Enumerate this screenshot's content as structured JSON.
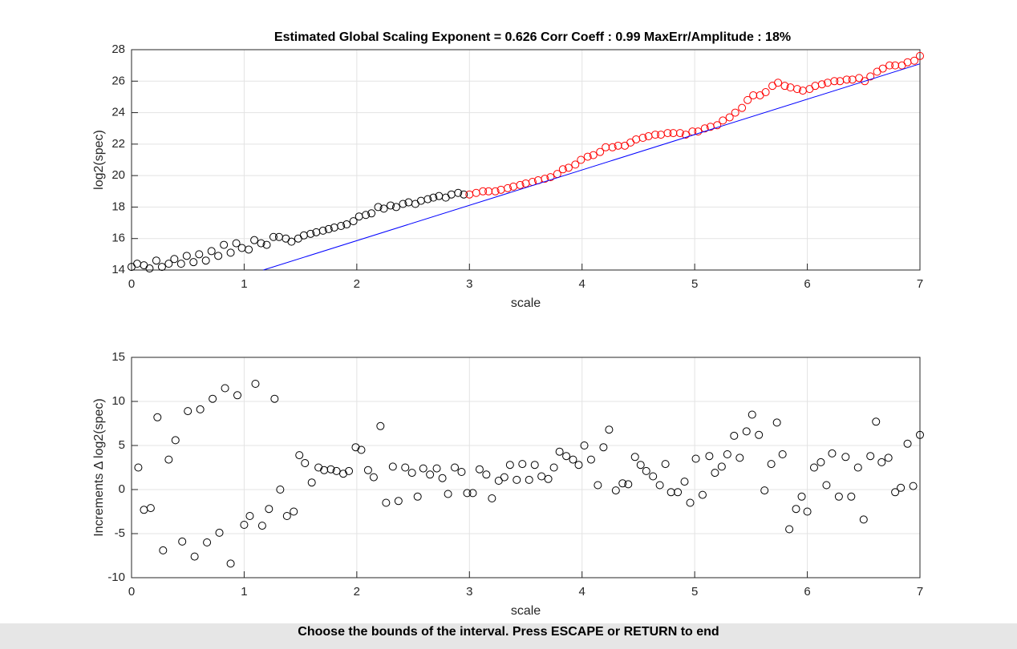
{
  "chart_data": [
    {
      "type": "scatter",
      "title": "Estimated Global Scaling Exponent = 0.626    Corr Coeff : 0.99    MaxErr/Amplitude : 18%",
      "x_label": "scale",
      "y_label": "log2(spec)",
      "xlim": [
        0,
        7
      ],
      "ylim": [
        14,
        28
      ],
      "xticks": [
        0,
        1,
        2,
        3,
        4,
        5,
        6,
        7
      ],
      "yticks": [
        14,
        16,
        18,
        20,
        22,
        24,
        26,
        28
      ],
      "grid": true,
      "series": [
        {
          "color": "#000000",
          "marker": "circle",
          "x": [
            0,
            0.05,
            0.11,
            0.16,
            0.22,
            0.27,
            0.33,
            0.38,
            0.44,
            0.49,
            0.55,
            0.6,
            0.66,
            0.71,
            0.77,
            0.82,
            0.88,
            0.93,
            0.98,
            1.04,
            1.09,
            1.15,
            1.2,
            1.26,
            1.31,
            1.37,
            1.42,
            1.48,
            1.53,
            1.59,
            1.64,
            1.7,
            1.75,
            1.8,
            1.86,
            1.91,
            1.97,
            2.02,
            2.08,
            2.13,
            2.19,
            2.24,
            2.3,
            2.35,
            2.41,
            2.46,
            2.52,
            2.57,
            2.63,
            2.68,
            2.73,
            2.79,
            2.84,
            2.9,
            2.95
          ],
          "values": [
            14.2,
            14.4,
            14.3,
            14.1,
            14.6,
            14.2,
            14.4,
            14.7,
            14.4,
            14.9,
            14.5,
            15.0,
            14.6,
            15.2,
            14.9,
            15.6,
            15.1,
            15.7,
            15.4,
            15.3,
            15.9,
            15.7,
            15.6,
            16.1,
            16.1,
            16.0,
            15.8,
            16.0,
            16.2,
            16.3,
            16.4,
            16.5,
            16.6,
            16.7,
            16.8,
            16.9,
            17.1,
            17.4,
            17.5,
            17.6,
            18.0,
            17.9,
            18.1,
            18.0,
            18.2,
            18.3,
            18.2,
            18.4,
            18.5,
            18.6,
            18.7,
            18.6,
            18.8,
            18.9,
            18.8
          ]
        },
        {
          "color": "#ff0000",
          "marker": "circle",
          "x": [
            3.0,
            3.06,
            3.12,
            3.17,
            3.23,
            3.28,
            3.34,
            3.39,
            3.45,
            3.5,
            3.56,
            3.61,
            3.67,
            3.72,
            3.78,
            3.83,
            3.88,
            3.94,
            3.99,
            4.05,
            4.1,
            4.16,
            4.21,
            4.27,
            4.32,
            4.38,
            4.43,
            4.48,
            4.54,
            4.59,
            4.65,
            4.7,
            4.76,
            4.81,
            4.87,
            4.92,
            4.98,
            5.03,
            5.09,
            5.14,
            5.2,
            5.25,
            5.31,
            5.36,
            5.42,
            5.47,
            5.52,
            5.58,
            5.63,
            5.69,
            5.74,
            5.8,
            5.85,
            5.91,
            5.96,
            6.02,
            6.07,
            6.13,
            6.18,
            6.24,
            6.29,
            6.35,
            6.4,
            6.46,
            6.51,
            6.56,
            6.62,
            6.67,
            6.73,
            6.78,
            6.84,
            6.89,
            6.95,
            7.0
          ],
          "values": [
            18.8,
            18.9,
            19.0,
            19.0,
            19.0,
            19.1,
            19.2,
            19.3,
            19.4,
            19.5,
            19.6,
            19.7,
            19.8,
            19.9,
            20.1,
            20.4,
            20.5,
            20.7,
            21.0,
            21.2,
            21.3,
            21.5,
            21.8,
            21.8,
            21.9,
            21.9,
            22.1,
            22.3,
            22.4,
            22.5,
            22.6,
            22.6,
            22.7,
            22.7,
            22.7,
            22.6,
            22.8,
            22.8,
            23.0,
            23.1,
            23.2,
            23.5,
            23.7,
            24.0,
            24.3,
            24.8,
            25.1,
            25.1,
            25.3,
            25.7,
            25.9,
            25.7,
            25.6,
            25.5,
            25.4,
            25.5,
            25.7,
            25.8,
            25.9,
            26.0,
            26.0,
            26.1,
            26.1,
            26.2,
            26.0,
            26.3,
            26.6,
            26.8,
            27.0,
            27.0,
            27.0,
            27.2,
            27.3,
            27.6
          ]
        },
        {
          "color": "#0000ff",
          "style": "line",
          "x": [
            1.17,
            7
          ],
          "values": [
            14,
            27.1
          ]
        }
      ]
    },
    {
      "type": "scatter",
      "x_label": "scale",
      "y_label": "Increments Δ log2(spec)",
      "xlim": [
        0,
        7
      ],
      "ylim": [
        -10,
        15
      ],
      "xticks": [
        0,
        1,
        2,
        3,
        4,
        5,
        6,
        7
      ],
      "yticks": [
        -10,
        -5,
        0,
        5,
        10,
        15
      ],
      "grid": true,
      "series": [
        {
          "color": "#000000",
          "marker": "circle",
          "x": [
            0.06,
            0.11,
            0.17,
            0.23,
            0.28,
            0.33,
            0.39,
            0.45,
            0.5,
            0.56,
            0.61,
            0.67,
            0.72,
            0.78,
            0.83,
            0.88,
            0.94,
            1.0,
            1.05,
            1.1,
            1.16,
            1.22,
            1.27,
            1.32,
            1.38,
            1.44,
            1.49,
            1.54,
            1.6,
            1.66,
            1.71,
            1.77,
            1.82,
            1.88,
            1.93,
            1.99,
            2.04,
            2.1,
            2.15,
            2.21,
            2.26,
            2.32,
            2.37,
            2.43,
            2.49,
            2.54,
            2.59,
            2.65,
            2.71,
            2.76,
            2.81,
            2.87,
            2.93,
            2.98,
            3.03,
            3.09,
            3.15,
            3.2,
            3.26,
            3.31,
            3.36,
            3.42,
            3.47,
            3.53,
            3.58,
            3.64,
            3.7,
            3.75,
            3.8,
            3.86,
            3.92,
            3.97,
            4.02,
            4.08,
            4.14,
            4.19,
            4.24,
            4.3,
            4.36,
            4.41,
            4.47,
            4.52,
            4.57,
            4.63,
            4.69,
            4.74,
            4.79,
            4.85,
            4.91,
            4.96,
            5.01,
            5.07,
            5.13,
            5.18,
            5.24,
            5.29,
            5.35,
            5.4,
            5.46,
            5.51,
            5.57,
            5.62,
            5.68,
            5.73,
            5.78,
            5.84,
            5.9,
            5.95,
            6.0,
            6.06,
            6.12,
            6.17,
            6.22,
            6.28,
            6.34,
            6.39,
            6.45,
            6.5,
            6.56,
            6.61,
            6.66,
            6.72,
            6.78,
            6.83,
            6.89,
            6.94,
            7.0
          ],
          "values": [
            2.5,
            -2.3,
            -2.1,
            8.2,
            -6.9,
            3.4,
            5.6,
            -5.9,
            8.9,
            -7.6,
            9.1,
            -6.0,
            10.3,
            -4.9,
            11.5,
            -8.4,
            10.7,
            -4.0,
            -3.0,
            12.0,
            -4.1,
            -2.2,
            10.3,
            0.0,
            -3.0,
            -2.5,
            3.9,
            3.0,
            0.8,
            2.5,
            2.2,
            2.3,
            2.1,
            1.8,
            2.1,
            4.8,
            4.5,
            2.2,
            1.4,
            7.2,
            -1.5,
            2.6,
            -1.3,
            2.5,
            1.9,
            -0.8,
            2.4,
            1.7,
            2.4,
            1.3,
            -0.5,
            2.5,
            2.0,
            -0.4,
            -0.4,
            2.3,
            1.7,
            -1.0,
            1.0,
            1.4,
            2.8,
            1.1,
            2.9,
            1.1,
            2.8,
            1.5,
            1.2,
            2.5,
            4.3,
            3.8,
            3.4,
            2.8,
            5.0,
            3.4,
            0.5,
            4.8,
            6.8,
            -0.1,
            0.7,
            0.6,
            3.7,
            2.8,
            2.1,
            1.5,
            0.5,
            2.9,
            -0.3,
            -0.3,
            0.9,
            -1.5,
            3.5,
            -0.6,
            3.8,
            1.9,
            2.6,
            4.0,
            6.1,
            3.6,
            6.6,
            8.5,
            6.2,
            -0.1,
            2.9,
            7.6,
            4.0,
            -4.5,
            -2.2,
            -0.8,
            -2.5,
            2.5,
            3.1,
            0.5,
            4.1,
            -0.8,
            3.7,
            -0.8,
            2.5,
            -3.4,
            3.8,
            7.7,
            3.1,
            3.6,
            -0.3,
            0.2,
            5.2,
            0.4,
            6.2
          ]
        }
      ]
    }
  ],
  "status_bar": {
    "text": "Choose the bounds of the interval. Press ESCAPE or RETURN to end"
  }
}
